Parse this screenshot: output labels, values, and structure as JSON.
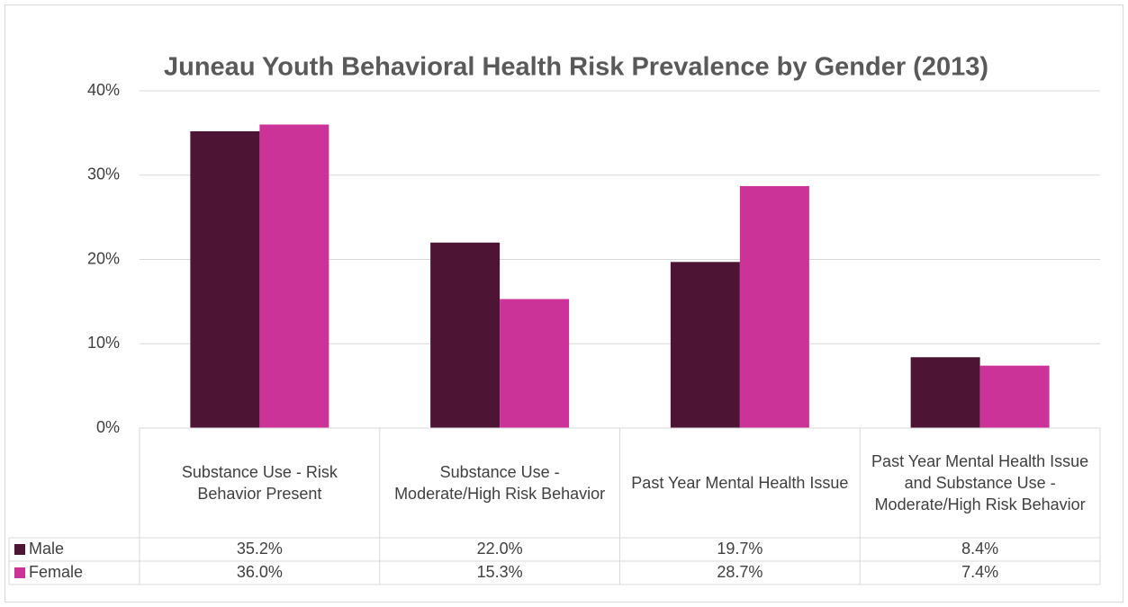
{
  "chart_data": {
    "type": "bar",
    "title": "Juneau Youth Behavioral Health Risk Prevalence by Gender (2013)",
    "categories": [
      "Substance Use - Risk Behavior Present",
      "Substance Use - Moderate/High Risk Behavior",
      "Past Year Mental Health Issue",
      "Past Year Mental Health Issue and Substance Use - Moderate/High Risk Behavior"
    ],
    "series": [
      {
        "name": "Male",
        "color": "#4d1434",
        "values": [
          35.2,
          22.0,
          19.7,
          8.4
        ],
        "value_labels": [
          "35.2%",
          "22.0%",
          "19.7%",
          "8.4%"
        ]
      },
      {
        "name": "Female",
        "color": "#cc3399",
        "values": [
          36.0,
          15.3,
          28.7,
          7.4
        ],
        "value_labels": [
          "36.0%",
          "15.3%",
          "28.7%",
          "7.4%"
        ]
      }
    ],
    "ylim": [
      0,
      40
    ],
    "yticks": [
      {
        "value": 0,
        "label": "0%"
      },
      {
        "value": 10,
        "label": "10%"
      },
      {
        "value": 20,
        "label": "20%"
      },
      {
        "value": 30,
        "label": "30%"
      },
      {
        "value": 40,
        "label": "40%"
      }
    ],
    "grid": true
  }
}
